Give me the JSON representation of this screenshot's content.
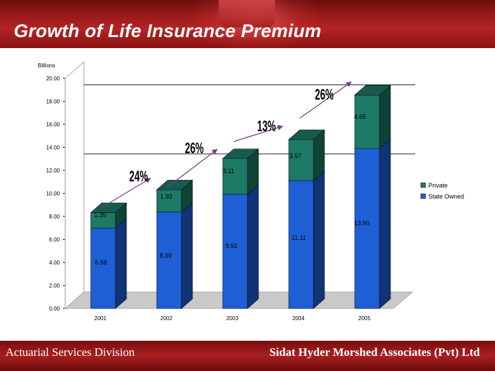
{
  "header": {
    "title": "Growth of Life Insurance Premium"
  },
  "footer": {
    "left": "Actuarial Services Division",
    "right": "Sidat Hyder Morshed Associates (Pvt) Ltd"
  },
  "chart_data": {
    "type": "bar",
    "stacked": true,
    "three_d": true,
    "ylabel": "Billions",
    "ylim": [
      0,
      20
    ],
    "yticks": [
      "0.00",
      "2.00",
      "4.00",
      "6.00",
      "8.00",
      "10.00",
      "12.00",
      "14.00",
      "16.00",
      "18.00",
      "20.00"
    ],
    "categories": [
      "2001",
      "2002",
      "2003",
      "2004",
      "2005"
    ],
    "series": [
      {
        "name": "State Owned",
        "color": "#1f5fd6",
        "values": [
          6.98,
          8.39,
          9.92,
          11.11,
          13.9
        ],
        "labels": [
          "6.98",
          "8.39",
          "9.92",
          "11.11",
          "13.90"
        ]
      },
      {
        "name": "Private",
        "color": "#1d7a66",
        "values": [
          1.35,
          1.93,
          3.11,
          3.57,
          4.65
        ],
        "labels": [
          "1.35",
          "1.93",
          "3.11",
          "3.57",
          "4.65"
        ]
      }
    ],
    "annotations": [
      "24%",
      "26%",
      "13%",
      "26%"
    ],
    "legend_position": "right",
    "grid": "dashed"
  }
}
